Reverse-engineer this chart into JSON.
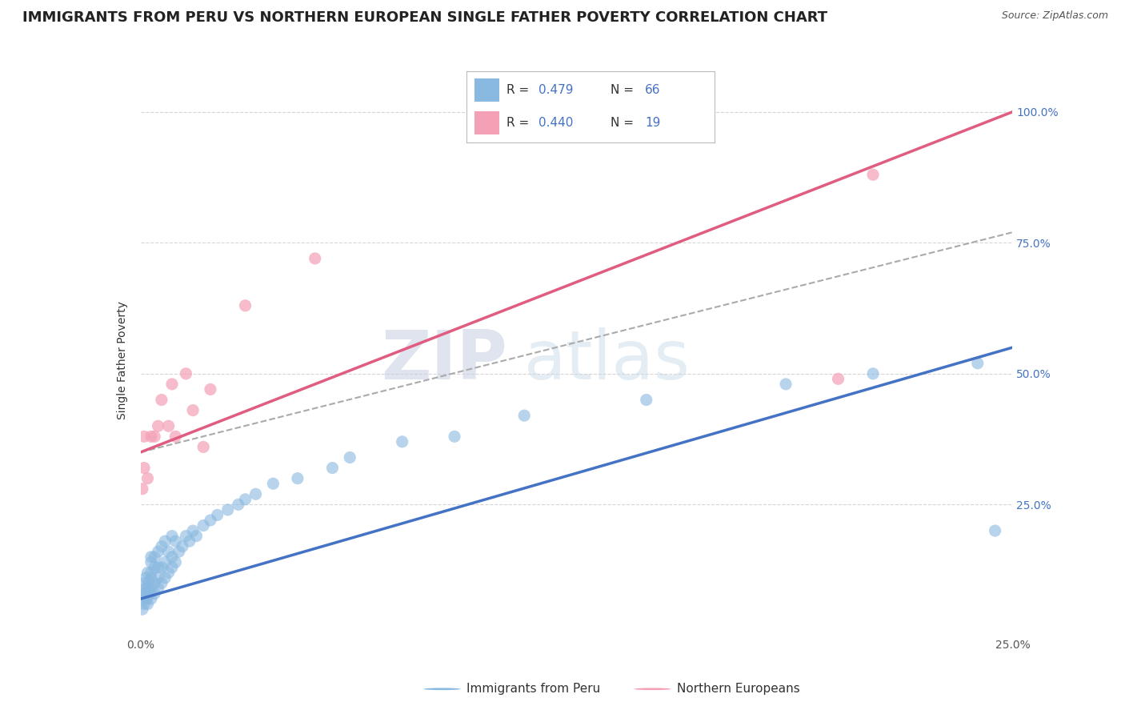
{
  "title": "IMMIGRANTS FROM PERU VS NORTHERN EUROPEAN SINGLE FATHER POVERTY CORRELATION CHART",
  "source": "Source: ZipAtlas.com",
  "ylabel": "Single Father Poverty",
  "xlabel_peru": "Immigrants from Peru",
  "xlabel_northern": "Northern Europeans",
  "watermark_zip": "ZIP",
  "watermark_atlas": "atlas",
  "xlim": [
    0.0,
    0.25
  ],
  "ylim": [
    0.0,
    1.05
  ],
  "x_ticks": [
    0.0,
    0.05,
    0.1,
    0.15,
    0.2,
    0.25
  ],
  "x_tick_labels": [
    "0.0%",
    "",
    "",
    "",
    "",
    "25.0%"
  ],
  "y_tick_labels_right": [
    "25.0%",
    "50.0%",
    "75.0%",
    "100.0%"
  ],
  "y_ticks_right": [
    0.25,
    0.5,
    0.75,
    1.0
  ],
  "peru_color": "#89b8e0",
  "northern_color": "#f4a0b5",
  "peru_line_color": "#4472c4",
  "northern_line_color": "#e05c80",
  "dashed_line_color": "#aaaaaa",
  "peru_R": "0.479",
  "peru_N": "66",
  "northern_R": "0.440",
  "northern_N": "19",
  "peru_scatter_x": [
    0.0005,
    0.0008,
    0.001,
    0.001,
    0.0012,
    0.0013,
    0.0015,
    0.0015,
    0.0018,
    0.002,
    0.002,
    0.002,
    0.0022,
    0.0025,
    0.003,
    0.003,
    0.003,
    0.003,
    0.003,
    0.003,
    0.004,
    0.004,
    0.004,
    0.004,
    0.005,
    0.005,
    0.005,
    0.005,
    0.006,
    0.006,
    0.006,
    0.007,
    0.007,
    0.007,
    0.008,
    0.008,
    0.009,
    0.009,
    0.009,
    0.01,
    0.01,
    0.011,
    0.012,
    0.013,
    0.014,
    0.015,
    0.016,
    0.018,
    0.02,
    0.022,
    0.025,
    0.028,
    0.03,
    0.033,
    0.038,
    0.045,
    0.055,
    0.06,
    0.075,
    0.09,
    0.11,
    0.145,
    0.185,
    0.21,
    0.24,
    0.245
  ],
  "peru_scatter_y": [
    0.05,
    0.08,
    0.06,
    0.1,
    0.07,
    0.09,
    0.08,
    0.11,
    0.07,
    0.06,
    0.09,
    0.12,
    0.1,
    0.08,
    0.07,
    0.09,
    0.11,
    0.12,
    0.14,
    0.15,
    0.08,
    0.1,
    0.13,
    0.15,
    0.09,
    0.11,
    0.13,
    0.16,
    0.1,
    0.13,
    0.17,
    0.11,
    0.14,
    0.18,
    0.12,
    0.16,
    0.13,
    0.15,
    0.19,
    0.14,
    0.18,
    0.16,
    0.17,
    0.19,
    0.18,
    0.2,
    0.19,
    0.21,
    0.22,
    0.23,
    0.24,
    0.25,
    0.26,
    0.27,
    0.29,
    0.3,
    0.32,
    0.34,
    0.37,
    0.38,
    0.42,
    0.45,
    0.48,
    0.5,
    0.52,
    0.2
  ],
  "northern_scatter_x": [
    0.0005,
    0.001,
    0.001,
    0.002,
    0.003,
    0.004,
    0.005,
    0.006,
    0.008,
    0.009,
    0.01,
    0.013,
    0.015,
    0.018,
    0.02,
    0.03,
    0.05,
    0.2,
    0.21
  ],
  "northern_scatter_y": [
    0.28,
    0.32,
    0.38,
    0.3,
    0.38,
    0.38,
    0.4,
    0.45,
    0.4,
    0.48,
    0.38,
    0.5,
    0.43,
    0.36,
    0.47,
    0.63,
    0.72,
    0.49,
    0.88
  ],
  "peru_line_x": [
    0.0,
    0.25
  ],
  "peru_line_y": [
    0.07,
    0.55
  ],
  "northern_line_x": [
    0.0,
    0.25
  ],
  "northern_line_y": [
    0.35,
    1.0
  ],
  "dashed_line_x": [
    0.0,
    0.25
  ],
  "dashed_line_y": [
    0.35,
    0.77
  ],
  "title_fontsize": 13,
  "label_fontsize": 10,
  "tick_fontsize": 10,
  "legend_fontsize": 12,
  "right_tick_color": "#4472c4"
}
